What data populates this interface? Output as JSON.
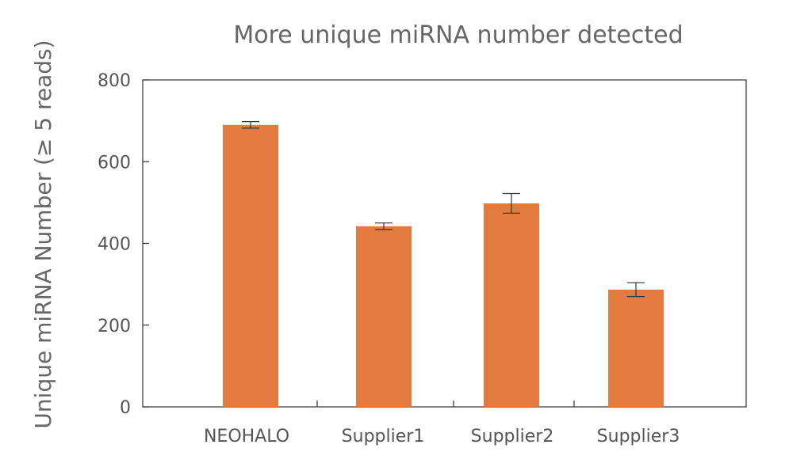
{
  "chart_data": {
    "type": "bar",
    "title": "More unique miRNA number detected",
    "xlabel": "",
    "ylabel": "Unique miRNA Number (≥ 5 reads)",
    "categories": [
      "NEOHALO",
      "Supplier1",
      "Supplier2",
      "Supplier3"
    ],
    "values": [
      690,
      442,
      498,
      287
    ],
    "errors": [
      8,
      8,
      24,
      17
    ],
    "ylim": [
      0,
      800
    ],
    "yticks": [
      0,
      200,
      400,
      600,
      800
    ],
    "grid": false,
    "bar_color": "#E37A40",
    "error_color": "#333333",
    "axis_color": "#333333",
    "text_color": "#555555"
  }
}
